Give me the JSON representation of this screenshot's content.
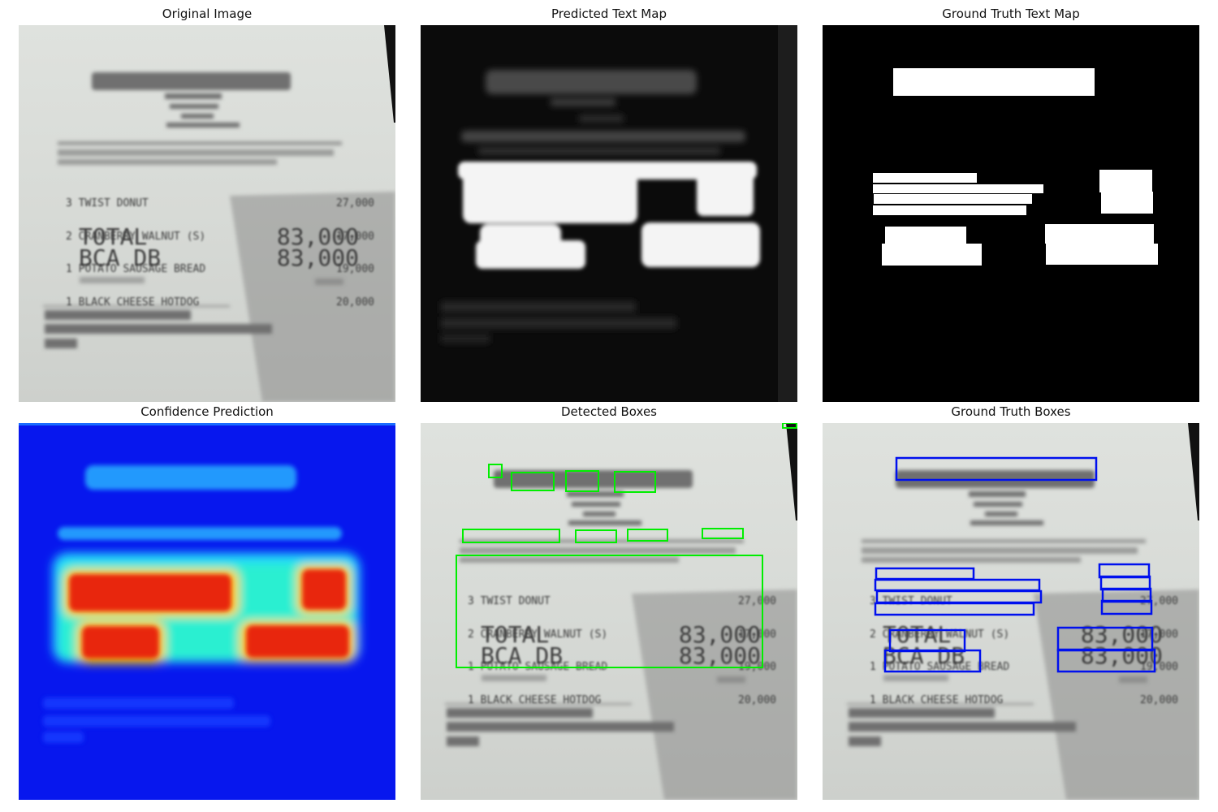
{
  "titles": {
    "original": "Original Image",
    "predicted_map": "Predicted Text Map",
    "gt_map": "Ground Truth Text Map",
    "confidence": "Confidence Prediction",
    "detected": "Detected Boxes",
    "gt_boxes": "Ground Truth Boxes"
  },
  "receipt": {
    "items": [
      {
        "qty_name": "3 TWIST DONUT",
        "price": "27,000"
      },
      {
        "qty_name": "2 CRANBERRY WALNUT (S)",
        "price": "17,000"
      },
      {
        "qty_name": "1 POTATO SAUSAGE BREAD",
        "price": "19,000"
      },
      {
        "qty_name": "1 BLACK CHEESE HOTDOG",
        "price": "20,000"
      }
    ],
    "total_label": "TOTAL",
    "total_value": "83,000",
    "payment_label": "BCA DB",
    "payment_value": "83,000"
  },
  "colors": {
    "detected_box": "#00ee00",
    "gt_box": "#0010ee",
    "paper": "#d9dcd8",
    "shadow": "#8b8b8a"
  }
}
